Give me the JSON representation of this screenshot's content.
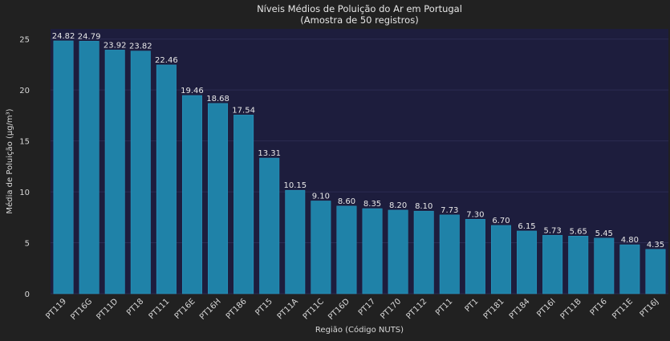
{
  "chart_data": {
    "type": "bar",
    "title": "Níveis Médios de Poluição do Ar em Portugal",
    "subtitle": "(Amostra de 50 registros)",
    "xlabel": "Região (Código NUTS)",
    "ylabel": "Média de Poluição (µg/m³)",
    "ylim": [
      0,
      26
    ],
    "yticks": [
      0,
      5,
      10,
      15,
      20,
      25
    ],
    "grid": true,
    "categories": [
      "PT119",
      "PT16G",
      "PT11D",
      "PT18",
      "PT111",
      "PT16E",
      "PT16H",
      "PT186",
      "PT15",
      "PT11A",
      "PT11C",
      "PT16D",
      "PT17",
      "PT170",
      "PT112",
      "PT11",
      "PT1",
      "PT181",
      "PT184",
      "PT16I",
      "PT11B",
      "PT16",
      "PT11E",
      "PT16J"
    ],
    "values": [
      24.82,
      24.79,
      23.92,
      23.82,
      22.46,
      19.46,
      18.68,
      17.54,
      13.31,
      10.15,
      9.1,
      8.6,
      8.35,
      8.2,
      8.1,
      7.73,
      7.3,
      6.7,
      6.15,
      5.73,
      5.65,
      5.45,
      4.8,
      4.35
    ],
    "value_labels": [
      "24.82",
      "24.79",
      "23.92",
      "23.82",
      "22.46",
      "19.46",
      "18.68",
      "17.54",
      "13.31",
      "10.15",
      "9.10",
      "8.60",
      "8.35",
      "8.20",
      "8.10",
      "7.73",
      "7.30",
      "6.70",
      "6.15",
      "5.73",
      "5.65",
      "5.45",
      "4.80",
      "4.35"
    ],
    "colors": {
      "bar": "#1f82a8",
      "bar_edge": "#2a98c0",
      "plot_bg": "#1d1d3d",
      "page_bg": "#212121",
      "grid": "#2c2c52"
    }
  }
}
